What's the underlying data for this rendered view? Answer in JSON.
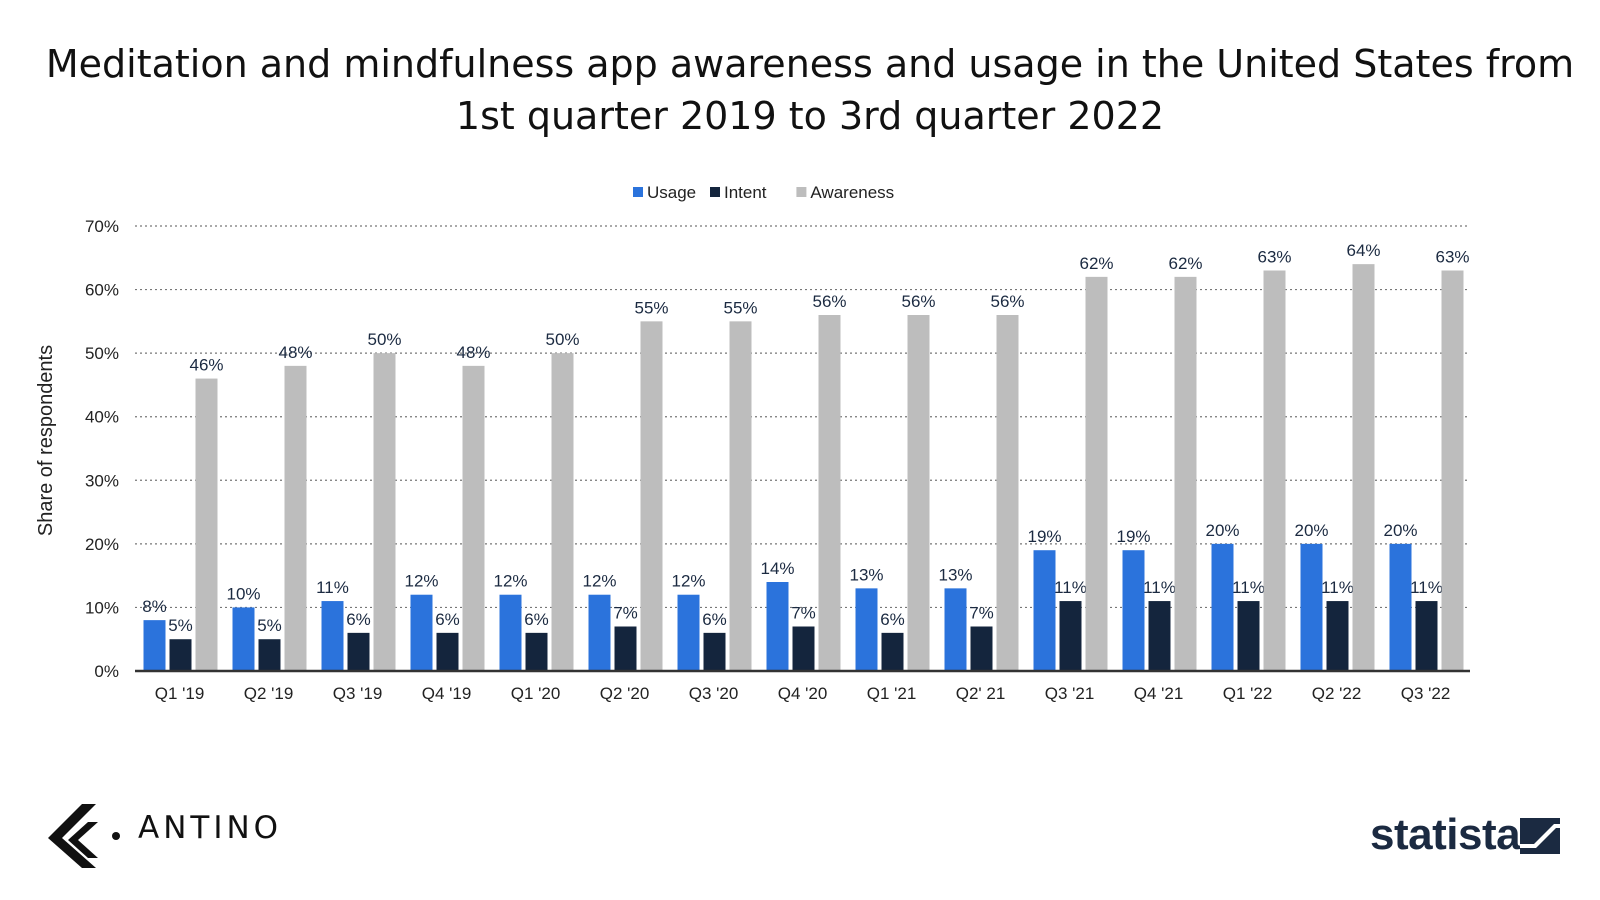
{
  "title": "Meditation and mindfulness app awareness and usage in the United States from 1st quarter 2019 to 3rd quarter 2022",
  "branding": {
    "left_logo_text": "ANTINO",
    "right_logo_text": "statista"
  },
  "chart_data": {
    "type": "bar",
    "title": "Meditation and mindfulness app awareness and usage in the United States from 1st quarter 2019 to 3rd quarter 2022",
    "xlabel": "",
    "ylabel": "Share of respondents",
    "ylim": [
      0,
      70
    ],
    "yticks": [
      0,
      10,
      20,
      30,
      40,
      50,
      60,
      70
    ],
    "ytick_labels": [
      "0%",
      "10%",
      "20%",
      "30%",
      "40%",
      "50%",
      "60%",
      "70%"
    ],
    "grid": true,
    "legend_position": "top-center",
    "categories": [
      "Q1 '19",
      "Q2 '19",
      "Q3 '19",
      "Q4 '19",
      "Q1 '20",
      "Q2 '20",
      "Q3 '20",
      "Q4 '20",
      "Q1 '21",
      "Q2' 21",
      "Q3 '21",
      "Q4 '21",
      "Q1 '22",
      "Q2 '22",
      "Q3 '22"
    ],
    "series": [
      {
        "name": "Usage",
        "color": "#2b73dc",
        "values": [
          8,
          10,
          11,
          12,
          12,
          12,
          12,
          14,
          13,
          13,
          19,
          19,
          20,
          20,
          20
        ]
      },
      {
        "name": "Intent",
        "color": "#14253d",
        "values": [
          5,
          5,
          6,
          6,
          6,
          7,
          6,
          7,
          6,
          7,
          11,
          11,
          11,
          11,
          11
        ]
      },
      {
        "name": "Awareness",
        "color": "#bdbdbd",
        "values": [
          46,
          48,
          50,
          48,
          50,
          55,
          55,
          56,
          56,
          56,
          62,
          62,
          63,
          64,
          63
        ]
      }
    ],
    "value_suffix": "%"
  }
}
